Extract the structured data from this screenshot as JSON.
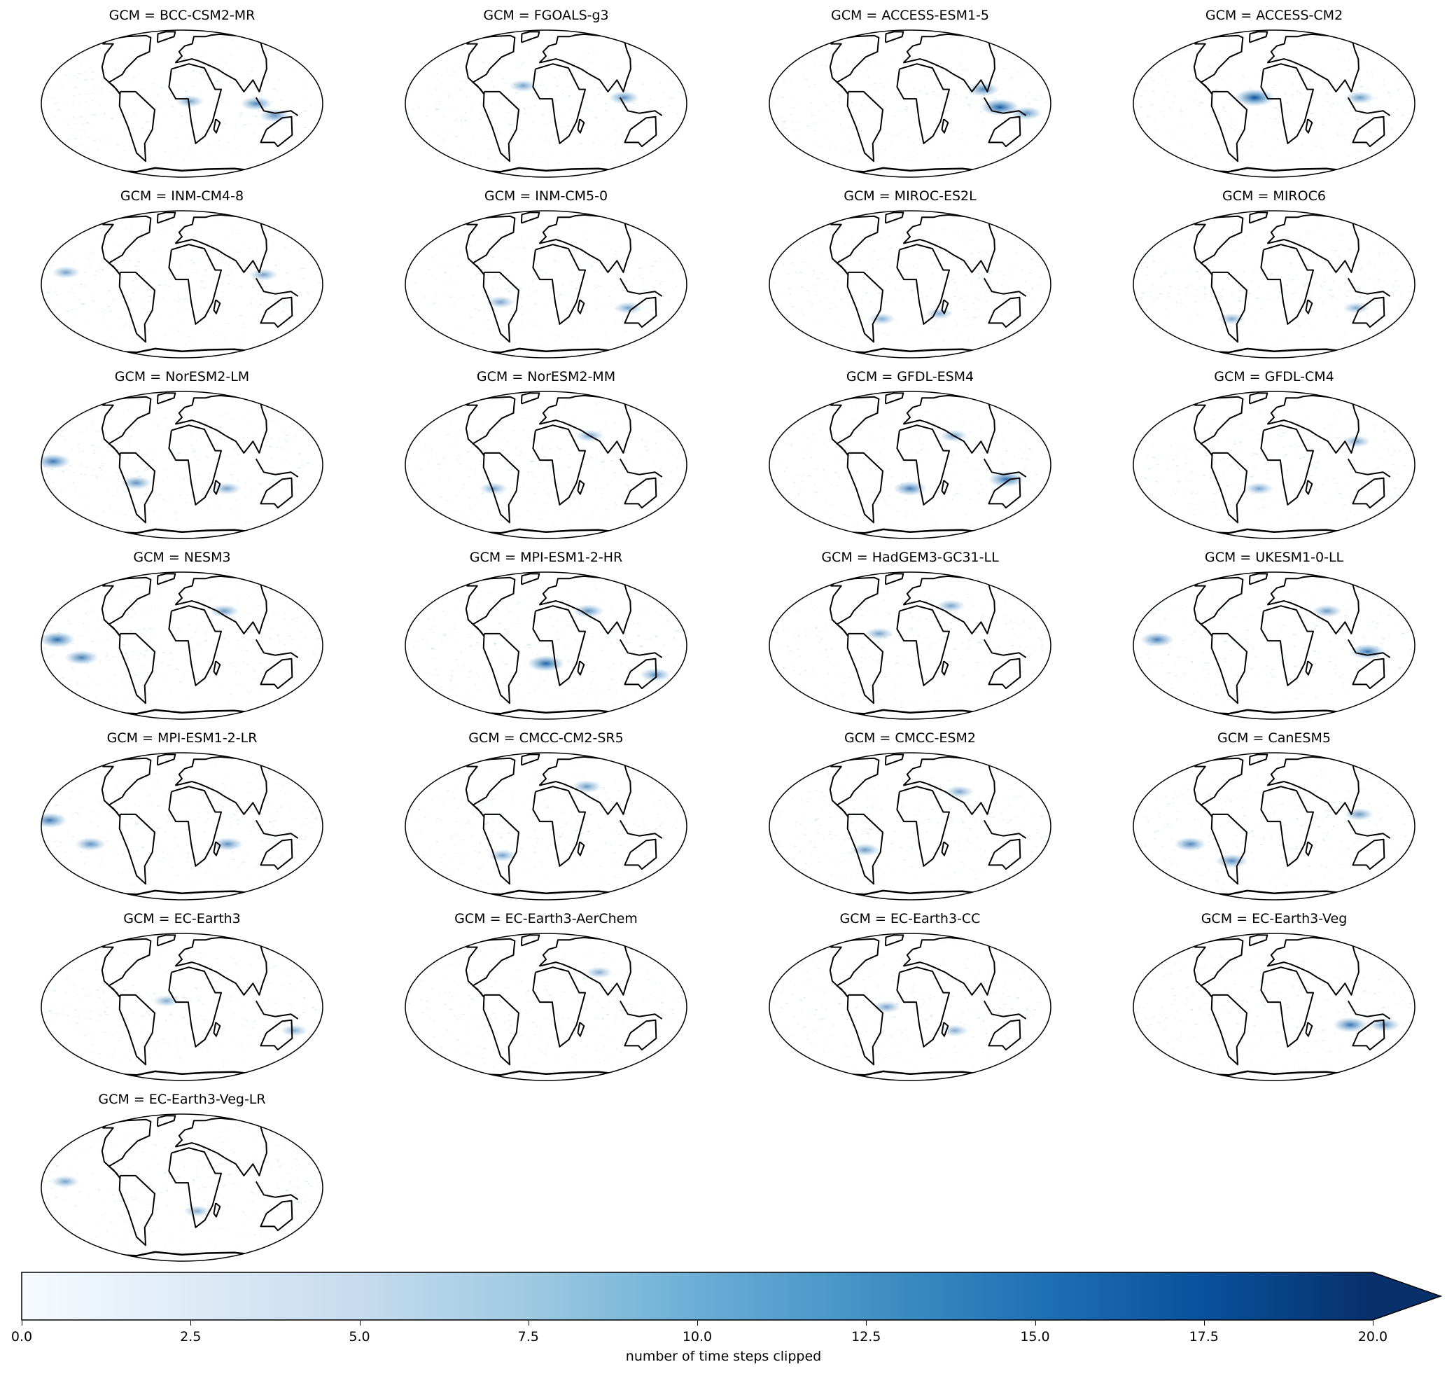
{
  "panels": [
    {
      "label": "GCM = BCC-CSM2-MR",
      "hotspots": [
        {
          "lon": 10,
          "lat": 2,
          "intensity": 0.35
        },
        {
          "lon": 95,
          "lat": 0,
          "intensity": 0.5
        },
        {
          "lon": 120,
          "lat": -10,
          "intensity": 0.45
        }
      ]
    },
    {
      "label": "GCM = FGOALS-g3",
      "hotspots": [
        {
          "lon": -30,
          "lat": 15,
          "intensity": 0.35
        },
        {
          "lon": 100,
          "lat": 5,
          "intensity": 0.45
        }
      ]
    },
    {
      "label": "GCM = ACCESS-ESM1-5",
      "hotspots": [
        {
          "lon": 115,
          "lat": -3,
          "intensity": 0.75
        },
        {
          "lon": 95,
          "lat": 12,
          "intensity": 0.5
        },
        {
          "lon": 150,
          "lat": -8,
          "intensity": 0.45
        }
      ]
    },
    {
      "label": "GCM = ACCESS-CM2",
      "hotspots": [
        {
          "lon": -25,
          "lat": 5,
          "intensity": 0.8
        },
        {
          "lon": 110,
          "lat": 5,
          "intensity": 0.4
        }
      ]
    },
    {
      "label": "GCM = INM-CM4-8",
      "hotspots": [
        {
          "lon": -150,
          "lat": 10,
          "intensity": 0.35
        },
        {
          "lon": 105,
          "lat": 8,
          "intensity": 0.35
        }
      ]
    },
    {
      "label": "GCM = INM-CM5-0",
      "hotspots": [
        {
          "lon": -60,
          "lat": -15,
          "intensity": 0.35
        },
        {
          "lon": 110,
          "lat": -20,
          "intensity": 0.35
        }
      ]
    },
    {
      "label": "GCM = MIROC-ES2L",
      "hotspots": [
        {
          "lon": -40,
          "lat": -30,
          "intensity": 0.3
        },
        {
          "lon": 40,
          "lat": -25,
          "intensity": 0.3
        }
      ]
    },
    {
      "label": "GCM = MIROC6",
      "hotspots": [
        {
          "lon": -60,
          "lat": -30,
          "intensity": 0.3
        },
        {
          "lon": 110,
          "lat": -20,
          "intensity": 0.3
        }
      ]
    },
    {
      "label": "GCM = NorESM2-LM",
      "hotspots": [
        {
          "lon": -165,
          "lat": 3,
          "intensity": 0.6
        },
        {
          "lon": -60,
          "lat": -15,
          "intensity": 0.45
        },
        {
          "lon": 60,
          "lat": -20,
          "intensity": 0.35
        }
      ]
    },
    {
      "label": "GCM = NorESM2-MM",
      "hotspots": [
        {
          "lon": -70,
          "lat": -20,
          "intensity": 0.35
        },
        {
          "lon": 60,
          "lat": 25,
          "intensity": 0.35
        }
      ]
    },
    {
      "label": "GCM = GFDL-ESM4",
      "hotspots": [
        {
          "lon": 125,
          "lat": -12,
          "intensity": 0.65
        },
        {
          "lon": 0,
          "lat": -20,
          "intensity": 0.55
        },
        {
          "lon": 60,
          "lat": 25,
          "intensity": 0.35
        }
      ]
    },
    {
      "label": "GCM = GFDL-CM4",
      "hotspots": [
        {
          "lon": -20,
          "lat": -20,
          "intensity": 0.35
        },
        {
          "lon": 110,
          "lat": 20,
          "intensity": 0.35
        }
      ]
    },
    {
      "label": "GCM = NESM3",
      "hotspots": [
        {
          "lon": -160,
          "lat": 5,
          "intensity": 0.65
        },
        {
          "lon": -130,
          "lat": -10,
          "intensity": 0.55
        },
        {
          "lon": 60,
          "lat": 30,
          "intensity": 0.4
        }
      ]
    },
    {
      "label": "GCM = MPI-ESM1-2-HR",
      "hotspots": [
        {
          "lon": 0,
          "lat": -15,
          "intensity": 0.7
        },
        {
          "lon": 60,
          "lat": 30,
          "intensity": 0.45
        },
        {
          "lon": 150,
          "lat": -25,
          "intensity": 0.45
        }
      ]
    },
    {
      "label": "GCM = HadGEM3-GC31-LL",
      "hotspots": [
        {
          "lon": -40,
          "lat": 10,
          "intensity": 0.35
        },
        {
          "lon": 60,
          "lat": 35,
          "intensity": 0.35
        }
      ]
    },
    {
      "label": "GCM = UKESM1-0-LL",
      "hotspots": [
        {
          "lon": -150,
          "lat": 5,
          "intensity": 0.55
        },
        {
          "lon": 120,
          "lat": -5,
          "intensity": 0.6
        },
        {
          "lon": 75,
          "lat": 30,
          "intensity": 0.4
        }
      ]
    },
    {
      "label": "GCM = MPI-ESM1-2-LR",
      "hotspots": [
        {
          "lon": -170,
          "lat": 5,
          "intensity": 0.6
        },
        {
          "lon": -120,
          "lat": -15,
          "intensity": 0.45
        },
        {
          "lon": 60,
          "lat": -15,
          "intensity": 0.45
        }
      ]
    },
    {
      "label": "GCM = CMCC-CM2-SR5",
      "hotspots": [
        {
          "lon": 60,
          "lat": 35,
          "intensity": 0.4
        },
        {
          "lon": -60,
          "lat": -25,
          "intensity": 0.35
        }
      ]
    },
    {
      "label": "GCM = CMCC-ESM2",
      "hotspots": [
        {
          "lon": -60,
          "lat": -20,
          "intensity": 0.4
        },
        {
          "lon": 70,
          "lat": 30,
          "intensity": 0.35
        }
      ]
    },
    {
      "label": "GCM = CanESM5",
      "hotspots": [
        {
          "lon": -110,
          "lat": -15,
          "intensity": 0.5
        },
        {
          "lon": -60,
          "lat": -30,
          "intensity": 0.5
        },
        {
          "lon": 110,
          "lat": 10,
          "intensity": 0.4
        }
      ]
    },
    {
      "label": "GCM = EC-Earth3",
      "hotspots": [
        {
          "lon": -20,
          "lat": 5,
          "intensity": 0.3
        },
        {
          "lon": 150,
          "lat": -20,
          "intensity": 0.3
        }
      ]
    },
    {
      "label": "GCM = EC-Earth3-AerChem",
      "hotspots": [
        {
          "lon": 75,
          "lat": 30,
          "intensity": 0.3
        }
      ]
    },
    {
      "label": "GCM = EC-Earth3-CC",
      "hotspots": [
        {
          "lon": -30,
          "lat": 0,
          "intensity": 0.35
        },
        {
          "lon": 60,
          "lat": -20,
          "intensity": 0.3
        }
      ]
    },
    {
      "label": "GCM = EC-Earth3-Veg",
      "hotspots": [
        {
          "lon": 100,
          "lat": -15,
          "intensity": 0.6
        },
        {
          "lon": 145,
          "lat": -15,
          "intensity": 0.45
        }
      ]
    },
    {
      "label": "GCM = EC-Earth3-Veg-LR",
      "hotspots": [
        {
          "lon": -150,
          "lat": 5,
          "intensity": 0.35
        },
        {
          "lon": 20,
          "lat": -20,
          "intensity": 0.3
        }
      ]
    }
  ],
  "colorbar": {
    "label": "number of time steps clipped",
    "min": 0.0,
    "max": 20.0,
    "extend": "max",
    "cmap": "Blues",
    "color_low": "#f7fbff",
    "color_mid": "#6baed6",
    "color_high": "#08306b",
    "ticks": [
      "0.0",
      "2.5",
      "5.0",
      "7.5",
      "10.0",
      "12.5",
      "15.0",
      "17.5",
      "20.0"
    ]
  }
}
